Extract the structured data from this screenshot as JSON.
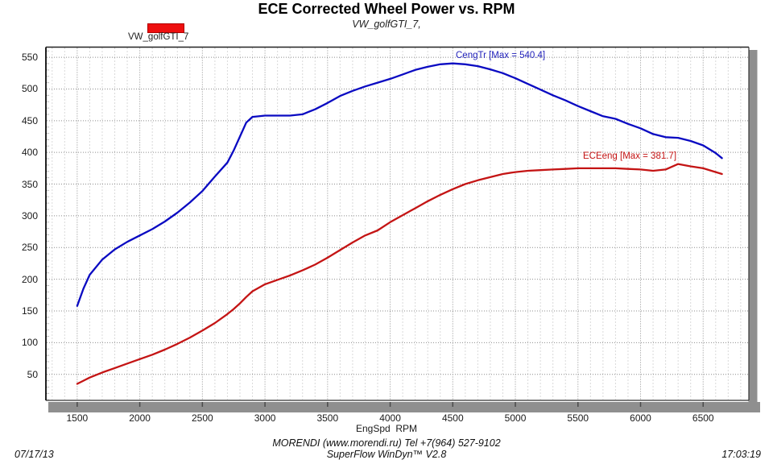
{
  "header": {
    "title": "ECE Corrected Wheel Power vs. RPM",
    "subtitle": "VW_golfGTI_7,"
  },
  "legend": {
    "label": "VW_golfGTI_7",
    "swatch_color": "#ee0f0f",
    "position": "top-left"
  },
  "annotations": {
    "torque_label": "CengTr [Max = 540.4]",
    "power_label": "ECEeng [Max = 381.7]"
  },
  "axes": {
    "xlabel": "EngSpd  RPM"
  },
  "footer": {
    "date": "07/17/13",
    "center_line1": "MORENDI (www.morendi.ru) Tel +7(964) 527-9102",
    "center_line2": "SuperFlow WinDyn™ V2.8",
    "time": "17:03:19"
  },
  "chart_data": {
    "type": "line",
    "title": "ECE Corrected Wheel Power vs. RPM",
    "subtitle": "VW_golfGTI_7,",
    "xlabel": "EngSpd  RPM",
    "grid": true,
    "legend_position": "top-left",
    "xlim": [
      1250,
      6865
    ],
    "ylim": [
      9,
      566
    ],
    "xticks": [
      1500,
      2000,
      2500,
      3000,
      3500,
      4000,
      4500,
      5000,
      5500,
      6000,
      6500
    ],
    "yticks": [
      50,
      100,
      150,
      200,
      250,
      300,
      350,
      400,
      450,
      500,
      550
    ],
    "minor_x_step": 100,
    "minor_y_step": 10,
    "x": [
      1500,
      1550,
      1600,
      1700,
      1800,
      1900,
      2000,
      2100,
      2200,
      2300,
      2400,
      2500,
      2600,
      2700,
      2750,
      2800,
      2850,
      2900,
      3000,
      3100,
      3200,
      3300,
      3400,
      3500,
      3600,
      3700,
      3800,
      3900,
      4000,
      4100,
      4200,
      4300,
      4400,
      4500,
      4600,
      4700,
      4800,
      4900,
      5000,
      5100,
      5200,
      5300,
      5400,
      5500,
      5600,
      5700,
      5800,
      5900,
      6000,
      6100,
      6200,
      6300,
      6400,
      6500,
      6600,
      6650
    ],
    "series": [
      {
        "name": "CengTr",
        "annotation": "CengTr [Max = 540.4]",
        "max": 540.4,
        "max_at_rpm": 4500,
        "color": "#0a0ac2",
        "values": [
          158,
          185,
          207,
          231,
          247,
          259,
          269,
          279,
          291,
          305,
          321,
          339,
          362,
          384,
          403,
          425,
          447,
          456,
          458,
          458,
          458,
          460,
          468,
          478,
          489,
          497,
          504,
          510,
          516,
          523,
          530,
          535,
          539,
          540.4,
          539,
          536,
          531,
          525,
          517,
          508,
          499,
          490,
          482,
          473,
          465,
          457,
          453,
          445,
          438,
          429,
          424,
          423,
          418,
          411,
          399,
          391
        ]
      },
      {
        "name": "ECEeng",
        "annotation": "ECEeng [Max = 381.7]",
        "max": 381.7,
        "max_at_rpm": 6300,
        "color": "#c41414",
        "values": [
          35,
          40,
          45,
          53,
          60,
          67,
          74,
          81,
          89,
          98,
          108,
          119,
          131,
          145,
          153,
          162,
          172,
          181,
          192,
          199,
          206,
          214,
          223,
          234,
          246,
          258,
          269,
          277,
          290,
          301,
          312,
          323,
          333,
          342,
          350,
          356,
          361,
          366,
          369,
          371,
          372,
          373,
          374,
          375,
          375,
          375,
          375,
          374,
          373,
          371,
          373,
          381.7,
          378,
          375,
          369,
          366
        ]
      }
    ]
  }
}
